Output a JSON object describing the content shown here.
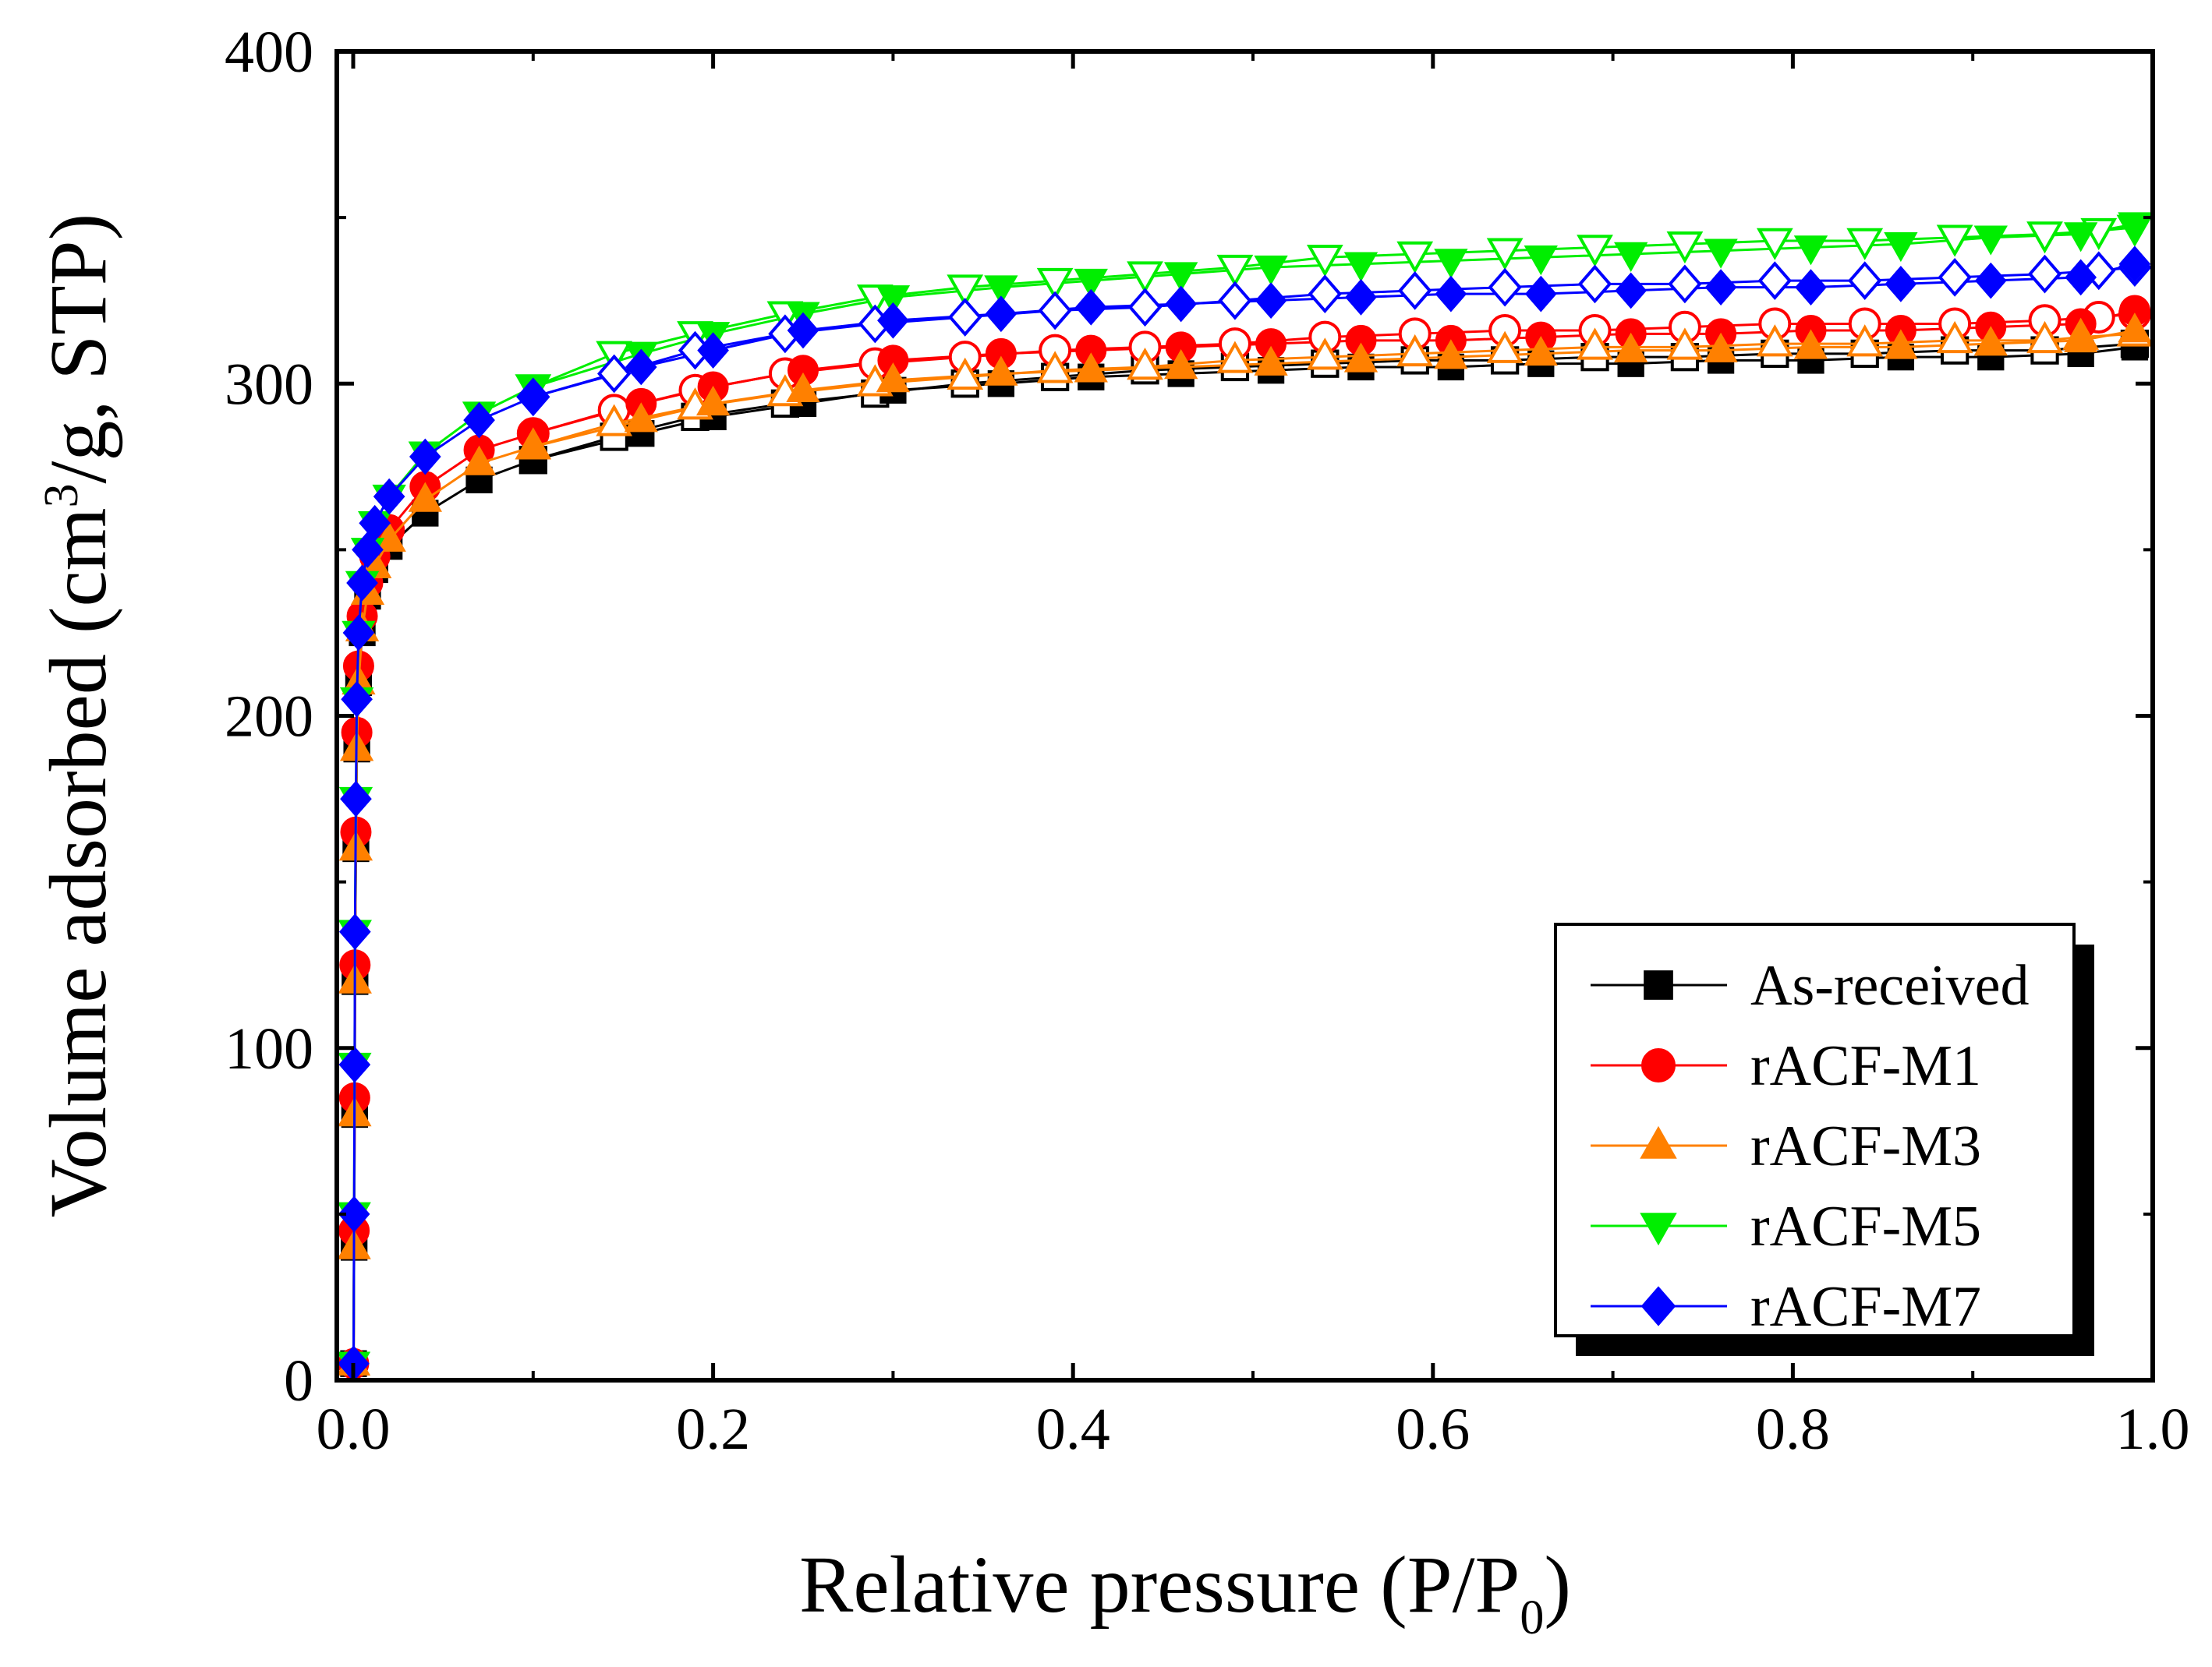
{
  "chart_data": {
    "type": "line",
    "title": "",
    "xlabel": "Relative pressure (P/P",
    "xlabel_sub": "0",
    "xlabel_end": ")",
    "ylabel_pre": "Volume adsorbed (cm",
    "ylabel_sup": "3",
    "ylabel_post": "/g, STP)",
    "xlim": [
      0,
      1.0
    ],
    "ylim": [
      0,
      400
    ],
    "xticks": [
      0.0,
      0.2,
      0.4,
      0.6,
      0.8,
      1.0
    ],
    "xtick_labels": [
      "0.0",
      "0.2",
      "0.4",
      "0.6",
      "0.8",
      "1.0"
    ],
    "yticks": [
      0,
      100,
      200,
      300,
      400
    ],
    "ytick_labels": [
      "0",
      "100",
      "200",
      "300",
      "400"
    ],
    "grid": false,
    "legend_position": "bottom-right",
    "series": [
      {
        "name": "As-received",
        "color": "#000000",
        "marker": "square",
        "adsorption": [
          [
            0.0002,
            5
          ],
          [
            0.0005,
            40
          ],
          [
            0.0008,
            80
          ],
          [
            0.001,
            120
          ],
          [
            0.0015,
            160
          ],
          [
            0.002,
            190
          ],
          [
            0.003,
            210
          ],
          [
            0.005,
            225
          ],
          [
            0.008,
            236
          ],
          [
            0.012,
            244
          ],
          [
            0.02,
            251
          ],
          [
            0.04,
            261
          ],
          [
            0.07,
            271
          ],
          [
            0.1,
            277
          ],
          [
            0.16,
            285
          ],
          [
            0.2,
            290
          ],
          [
            0.25,
            294
          ],
          [
            0.3,
            298
          ],
          [
            0.36,
            300
          ],
          [
            0.41,
            302
          ],
          [
            0.46,
            303
          ],
          [
            0.51,
            304
          ],
          [
            0.56,
            305
          ],
          [
            0.61,
            305
          ],
          [
            0.66,
            306
          ],
          [
            0.71,
            306
          ],
          [
            0.76,
            307
          ],
          [
            0.81,
            307
          ],
          [
            0.86,
            308
          ],
          [
            0.91,
            308
          ],
          [
            0.96,
            309
          ],
          [
            0.99,
            311
          ]
        ],
        "desorption": [
          [
            0.99,
            312
          ],
          [
            0.94,
            310
          ],
          [
            0.89,
            310
          ],
          [
            0.84,
            309
          ],
          [
            0.79,
            309
          ],
          [
            0.74,
            308
          ],
          [
            0.69,
            308
          ],
          [
            0.64,
            307
          ],
          [
            0.59,
            307
          ],
          [
            0.54,
            306
          ],
          [
            0.49,
            305
          ],
          [
            0.44,
            304
          ],
          [
            0.39,
            302
          ],
          [
            0.34,
            300
          ],
          [
            0.29,
            297
          ],
          [
            0.24,
            294
          ],
          [
            0.19,
            290
          ],
          [
            0.145,
            284
          ],
          [
            0.1,
            277
          ]
        ]
      },
      {
        "name": "rACF-M1",
        "color": "#ff0000",
        "marker": "circle",
        "adsorption": [
          [
            0.0002,
            5
          ],
          [
            0.0005,
            45
          ],
          [
            0.0008,
            85
          ],
          [
            0.001,
            125
          ],
          [
            0.0015,
            165
          ],
          [
            0.002,
            195
          ],
          [
            0.003,
            215
          ],
          [
            0.005,
            230
          ],
          [
            0.008,
            240
          ],
          [
            0.012,
            248
          ],
          [
            0.02,
            256
          ],
          [
            0.04,
            269
          ],
          [
            0.07,
            280
          ],
          [
            0.1,
            285
          ],
          [
            0.16,
            294
          ],
          [
            0.2,
            299
          ],
          [
            0.25,
            304
          ],
          [
            0.3,
            307
          ],
          [
            0.36,
            309
          ],
          [
            0.41,
            310
          ],
          [
            0.46,
            311
          ],
          [
            0.51,
            312
          ],
          [
            0.56,
            313
          ],
          [
            0.61,
            313
          ],
          [
            0.66,
            314
          ],
          [
            0.71,
            315
          ],
          [
            0.76,
            315
          ],
          [
            0.81,
            316
          ],
          [
            0.86,
            316
          ],
          [
            0.91,
            317
          ],
          [
            0.96,
            318
          ],
          [
            0.99,
            322
          ]
        ],
        "desorption": [
          [
            0.99,
            321
          ],
          [
            0.97,
            320
          ],
          [
            0.94,
            319
          ],
          [
            0.89,
            318
          ],
          [
            0.84,
            318
          ],
          [
            0.79,
            318
          ],
          [
            0.74,
            317
          ],
          [
            0.69,
            316
          ],
          [
            0.64,
            316
          ],
          [
            0.59,
            315
          ],
          [
            0.54,
            314
          ],
          [
            0.49,
            312
          ],
          [
            0.44,
            311
          ],
          [
            0.39,
            310
          ],
          [
            0.34,
            308
          ],
          [
            0.29,
            306
          ],
          [
            0.24,
            303
          ],
          [
            0.19,
            298
          ],
          [
            0.145,
            292
          ],
          [
            0.1,
            285
          ]
        ]
      },
      {
        "name": "rACF-M3",
        "color": "#ff8000",
        "marker": "triangle-up",
        "adsorption": [
          [
            0.0002,
            5
          ],
          [
            0.0005,
            40
          ],
          [
            0.0008,
            80
          ],
          [
            0.001,
            120
          ],
          [
            0.0015,
            160
          ],
          [
            0.002,
            190
          ],
          [
            0.003,
            210
          ],
          [
            0.005,
            226
          ],
          [
            0.008,
            237
          ],
          [
            0.012,
            245
          ],
          [
            0.02,
            253
          ],
          [
            0.04,
            265
          ],
          [
            0.07,
            276
          ],
          [
            0.1,
            281
          ],
          [
            0.16,
            289
          ],
          [
            0.2,
            294
          ],
          [
            0.25,
            298
          ],
          [
            0.3,
            301
          ],
          [
            0.36,
            303
          ],
          [
            0.41,
            304
          ],
          [
            0.46,
            305
          ],
          [
            0.51,
            306
          ],
          [
            0.56,
            307
          ],
          [
            0.61,
            308
          ],
          [
            0.66,
            309
          ],
          [
            0.71,
            310
          ],
          [
            0.76,
            310
          ],
          [
            0.81,
            311
          ],
          [
            0.86,
            311
          ],
          [
            0.91,
            312
          ],
          [
            0.96,
            313
          ],
          [
            0.99,
            316
          ]
        ],
        "desorption": [
          [
            0.99,
            315
          ],
          [
            0.96,
            314
          ],
          [
            0.94,
            313
          ],
          [
            0.89,
            313
          ],
          [
            0.84,
            312
          ],
          [
            0.79,
            312
          ],
          [
            0.74,
            311
          ],
          [
            0.69,
            311
          ],
          [
            0.64,
            310
          ],
          [
            0.59,
            309
          ],
          [
            0.54,
            308
          ],
          [
            0.49,
            307
          ],
          [
            0.44,
            305
          ],
          [
            0.39,
            304
          ],
          [
            0.34,
            302
          ],
          [
            0.29,
            300
          ],
          [
            0.24,
            297
          ],
          [
            0.19,
            293
          ],
          [
            0.145,
            288
          ],
          [
            0.1,
            281
          ]
        ]
      },
      {
        "name": "rACF-M5",
        "color": "#00ee00",
        "marker": "triangle-down",
        "adsorption": [
          [
            0.0002,
            5
          ],
          [
            0.0005,
            50
          ],
          [
            0.0008,
            95
          ],
          [
            0.001,
            135
          ],
          [
            0.0015,
            175
          ],
          [
            0.002,
            205
          ],
          [
            0.003,
            225
          ],
          [
            0.005,
            240
          ],
          [
            0.008,
            250
          ],
          [
            0.012,
            258
          ],
          [
            0.02,
            266
          ],
          [
            0.04,
            279
          ],
          [
            0.07,
            291
          ],
          [
            0.1,
            299
          ],
          [
            0.16,
            309
          ],
          [
            0.2,
            315
          ],
          [
            0.25,
            321
          ],
          [
            0.3,
            326
          ],
          [
            0.36,
            329
          ],
          [
            0.41,
            331
          ],
          [
            0.46,
            333
          ],
          [
            0.51,
            335
          ],
          [
            0.56,
            336
          ],
          [
            0.61,
            337
          ],
          [
            0.66,
            338
          ],
          [
            0.71,
            339
          ],
          [
            0.76,
            340
          ],
          [
            0.81,
            341
          ],
          [
            0.86,
            342
          ],
          [
            0.91,
            344
          ],
          [
            0.96,
            345
          ],
          [
            0.99,
            348
          ]
        ],
        "desorption": [
          [
            0.99,
            347
          ],
          [
            0.97,
            346
          ],
          [
            0.94,
            345
          ],
          [
            0.89,
            344
          ],
          [
            0.84,
            343
          ],
          [
            0.79,
            343
          ],
          [
            0.74,
            342
          ],
          [
            0.69,
            341
          ],
          [
            0.64,
            340
          ],
          [
            0.59,
            339
          ],
          [
            0.54,
            338
          ],
          [
            0.49,
            335
          ],
          [
            0.44,
            333
          ],
          [
            0.39,
            331
          ],
          [
            0.34,
            329
          ],
          [
            0.29,
            326
          ],
          [
            0.24,
            321
          ],
          [
            0.19,
            315
          ],
          [
            0.145,
            309
          ],
          [
            0.1,
            299
          ]
        ]
      },
      {
        "name": "rACF-M7",
        "color": "#0000ff",
        "marker": "diamond",
        "adsorption": [
          [
            0.0002,
            5
          ],
          [
            0.0005,
            50
          ],
          [
            0.0008,
            95
          ],
          [
            0.001,
            135
          ],
          [
            0.0015,
            175
          ],
          [
            0.002,
            205
          ],
          [
            0.003,
            225
          ],
          [
            0.005,
            240
          ],
          [
            0.008,
            250
          ],
          [
            0.012,
            258
          ],
          [
            0.02,
            266
          ],
          [
            0.04,
            278
          ],
          [
            0.07,
            289
          ],
          [
            0.1,
            296
          ],
          [
            0.16,
            305
          ],
          [
            0.2,
            310
          ],
          [
            0.25,
            316
          ],
          [
            0.3,
            319
          ],
          [
            0.36,
            321
          ],
          [
            0.41,
            323
          ],
          [
            0.46,
            324
          ],
          [
            0.51,
            325
          ],
          [
            0.56,
            326
          ],
          [
            0.61,
            327
          ],
          [
            0.66,
            327
          ],
          [
            0.71,
            328
          ],
          [
            0.76,
            329
          ],
          [
            0.81,
            329
          ],
          [
            0.86,
            330
          ],
          [
            0.91,
            331
          ],
          [
            0.96,
            332
          ],
          [
            0.99,
            336
          ]
        ],
        "desorption": [
          [
            0.99,
            335
          ],
          [
            0.97,
            334
          ],
          [
            0.94,
            333
          ],
          [
            0.89,
            332
          ],
          [
            0.84,
            331
          ],
          [
            0.79,
            331
          ],
          [
            0.74,
            330
          ],
          [
            0.69,
            330
          ],
          [
            0.64,
            329
          ],
          [
            0.59,
            328
          ],
          [
            0.54,
            327
          ],
          [
            0.49,
            325
          ],
          [
            0.44,
            323
          ],
          [
            0.39,
            322
          ],
          [
            0.34,
            320
          ],
          [
            0.29,
            318
          ],
          [
            0.24,
            315
          ],
          [
            0.19,
            310
          ],
          [
            0.145,
            303
          ],
          [
            0.1,
            296
          ]
        ]
      }
    ]
  }
}
